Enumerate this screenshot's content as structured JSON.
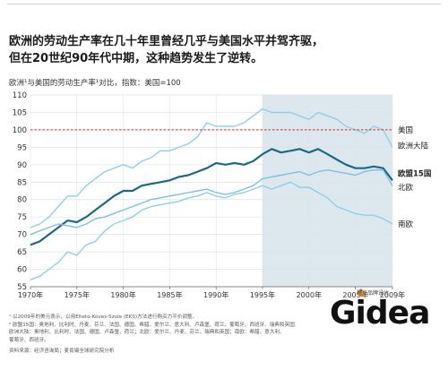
{
  "title_lines": [
    "欧洲的劳动生产率在几十年里曾经几乎与美国水平并驾齐驱，",
    "但在20世纪90年代中期，这种趋势发生了逆转。"
  ],
  "chart_data": {
    "type": "line",
    "title": "欧洲¹与美国的劳动生产率¹对比，指数：美国=100",
    "xlabel": "",
    "ylabel": "",
    "xlim": [
      1970,
      2009
    ],
    "ylim": [
      55,
      110
    ],
    "yticks": [
      55,
      60,
      65,
      70,
      75,
      80,
      85,
      90,
      95,
      100,
      105,
      110
    ],
    "xticks": [
      "1970年",
      "1975年",
      "1980年",
      "1985年",
      "1990年",
      "1995年",
      "2000年",
      "2005年",
      "2009年"
    ],
    "shaded_from": 1995,
    "grid": true,
    "reference_line": {
      "name": "美国",
      "value": 100,
      "color": "#d9242b",
      "style": "dashed"
    },
    "series": [
      {
        "name": "欧洲大陆",
        "color": "#8ed0e6",
        "width": 1.4,
        "x": [
          1970,
          1971,
          1972,
          1973,
          1974,
          1975,
          1976,
          1977,
          1978,
          1979,
          1980,
          1981,
          1982,
          1983,
          1984,
          1985,
          1986,
          1987,
          1988,
          1989,
          1990,
          1991,
          1992,
          1993,
          1994,
          1995,
          1996,
          1997,
          1998,
          1999,
          2000,
          2001,
          2002,
          2003,
          2004,
          2005,
          2006,
          2007,
          2008,
          2009
        ],
        "y": [
          72,
          73,
          75,
          78,
          81,
          81,
          84,
          86,
          88,
          89,
          90,
          89,
          91,
          92,
          94,
          94,
          95,
          96,
          98,
          102,
          101,
          101,
          101,
          102,
          104,
          106,
          105,
          105,
          105,
          104,
          103,
          105,
          104,
          103,
          101,
          100,
          99,
          101,
          100,
          95
        ]
      },
      {
        "name": "欧盟15国",
        "color": "#1b6a85",
        "width": 2.2,
        "x": [
          1970,
          1971,
          1972,
          1973,
          1974,
          1975,
          1976,
          1977,
          1978,
          1979,
          1980,
          1981,
          1982,
          1983,
          1984,
          1985,
          1986,
          1987,
          1988,
          1989,
          1990,
          1991,
          1992,
          1993,
          1994,
          1995,
          1996,
          1997,
          1998,
          1999,
          2000,
          2001,
          2002,
          2003,
          2004,
          2005,
          2006,
          2007,
          2008,
          2009
        ],
        "y": [
          67,
          68,
          70,
          72,
          74,
          73.5,
          75,
          77,
          79,
          81,
          82.5,
          82.5,
          84,
          84.5,
          85,
          85.5,
          86.5,
          87,
          88,
          89,
          90.5,
          90,
          90.5,
          90,
          91,
          93,
          94.5,
          93.5,
          94,
          94.5,
          93.5,
          94.5,
          93,
          91.5,
          90,
          89,
          89,
          89.5,
          89,
          85.5
        ]
      },
      {
        "name": "北欧",
        "color": "#7cc2dd",
        "width": 1.4,
        "x": [
          1970,
          1971,
          1972,
          1973,
          1974,
          1975,
          1976,
          1977,
          1978,
          1979,
          1980,
          1981,
          1982,
          1983,
          1984,
          1985,
          1986,
          1987,
          1988,
          1989,
          1990,
          1991,
          1992,
          1993,
          1994,
          1995,
          1996,
          1997,
          1998,
          1999,
          2000,
          2001,
          2002,
          2003,
          2004,
          2005,
          2006,
          2007,
          2008,
          2009
        ],
        "y": [
          70,
          71,
          72,
          73,
          72.5,
          72,
          73,
          74.5,
          75,
          76,
          77,
          78,
          79,
          80,
          80.5,
          81,
          81.5,
          82,
          82.5,
          83,
          82,
          81.5,
          82,
          83,
          84,
          86,
          86.5,
          87,
          87.5,
          88,
          87,
          88,
          88.5,
          88,
          87.5,
          87,
          88,
          88.5,
          88.5,
          84
        ]
      },
      {
        "name": "南欧",
        "color": "#8ed0e6",
        "width": 1.4,
        "x": [
          1970,
          1971,
          1972,
          1973,
          1974,
          1975,
          1976,
          1977,
          1978,
          1979,
          1980,
          1981,
          1982,
          1983,
          1984,
          1985,
          1986,
          1987,
          1988,
          1989,
          1990,
          1991,
          1992,
          1993,
          1994,
          1995,
          1996,
          1997,
          1998,
          1999,
          2000,
          2001,
          2002,
          2003,
          2004,
          2005,
          2006,
          2007,
          2008,
          2009
        ],
        "y": [
          57,
          58,
          60,
          62,
          65,
          64,
          67,
          68,
          71,
          73,
          74,
          75,
          77,
          78,
          78.5,
          79,
          79.5,
          80.5,
          81,
          82,
          81,
          80.5,
          81.5,
          82,
          83,
          84,
          83,
          84,
          85,
          83.5,
          83.5,
          82,
          80.5,
          78,
          77,
          76,
          75.5,
          75.5,
          74.5,
          73
        ]
      }
    ],
    "end_labels": [
      {
        "text": "美国",
        "value": 100,
        "bold": false
      },
      {
        "text": "欧洲大陆",
        "value": 95.5,
        "bold": false
      },
      {
        "text": "欧盟15国",
        "value": 87.5,
        "bold": true
      },
      {
        "text": "北欧",
        "value": 83.5,
        "bold": false
      },
      {
        "text": "南欧",
        "value": 73,
        "bold": false
      }
    ]
  },
  "footnotes": [
    "¹ 以2009年的美元表示，以用Elteto-Koves-Szule (EKS)方法进行购买力平价调整。",
    "² 欧盟15国：奥地利、比利时、丹麦、芬兰、法国、德国、希腊、爱尔兰、意大利、卢森堡、荷兰、葡萄牙、西班牙、瑞典和英国；",
    "欧洲大陆：奥地利、比利时、法国、德国、卢森堡、荷兰；北欧：爱尔兰、丹麦、芬兰、瑞典和英国；南欧：希腊、意大利、",
    "葡萄牙、西班牙。"
  ],
  "source": "资料来源：经济咨询局；麦肯锡全球研究院分析",
  "logo": {
    "text": "Gidea",
    "subtitle": "橙点品牌设计"
  },
  "colors": {
    "shade": "#dde8ee",
    "grid": "#ffffff",
    "us_line": "#d9242b"
  }
}
